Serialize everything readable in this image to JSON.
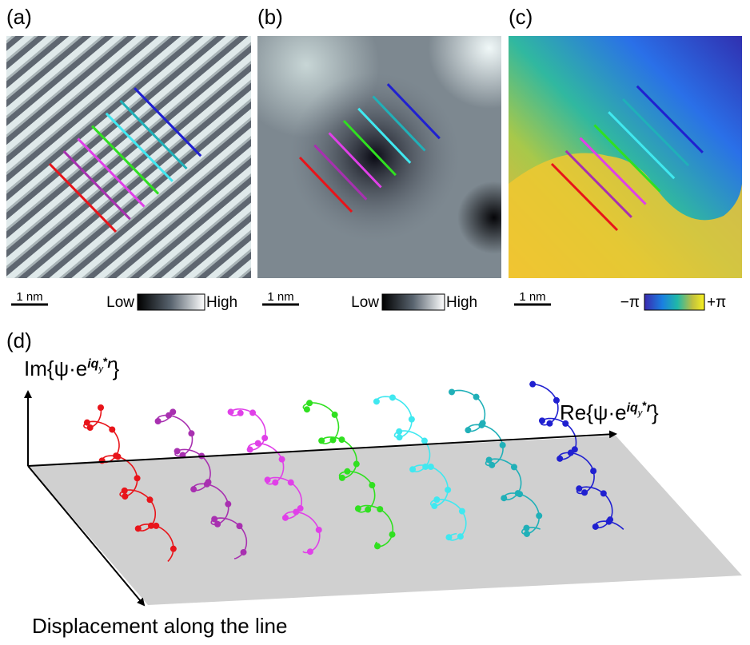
{
  "panels": [
    {
      "label": "(a)",
      "scale_bar": "1 nm",
      "colorbar": {
        "low": "Low",
        "high": "High"
      }
    },
    {
      "label": "(b)",
      "scale_bar": "1 nm",
      "colorbar": {
        "low": "Low",
        "high": "High"
      }
    },
    {
      "label": "(c)",
      "scale_bar": "1 nm",
      "colorbar": {
        "low": "−π",
        "high": "+π"
      }
    }
  ],
  "panel_d": {
    "label": "(d)",
    "y_axis": {
      "prefix": "Im{ψ·e",
      "exponent": "iq",
      "subscript": "y",
      "star": "*",
      "exponent_tail": "r",
      "suffix": "}"
    },
    "x_axis": {
      "prefix": "Re{ψ·e",
      "exponent": "iq",
      "subscript": "y",
      "star": "*",
      "exponent_tail": "r",
      "suffix": "}"
    },
    "diagonal_axis": "Displacement along the line"
  }
}
